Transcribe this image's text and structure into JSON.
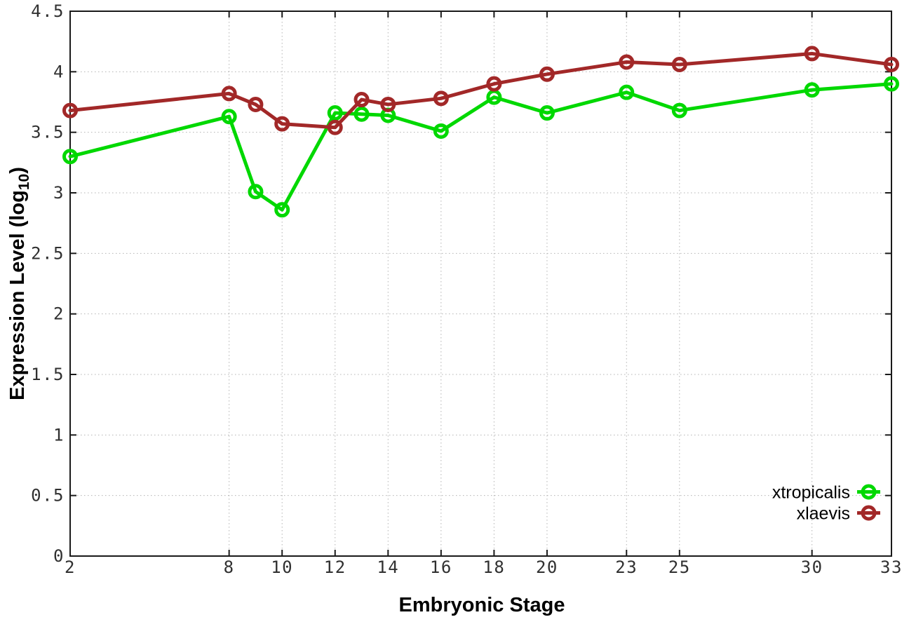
{
  "figure": {
    "background": "#ffffff",
    "border_color": "#1a1a1a",
    "grid_color": "#b3b3b3"
  },
  "chart_data": {
    "type": "line",
    "title": "",
    "xlabel": "Embryonic Stage",
    "ylabel": "Expression Level (log10)",
    "ylabel_parts": {
      "pre": "Expression Level (log",
      "sub": "10",
      "post": ")"
    },
    "xlim": [
      2,
      33
    ],
    "ylim": [
      0,
      4.5
    ],
    "xticks": [
      2,
      8,
      10,
      12,
      14,
      16,
      18,
      20,
      23,
      25,
      30,
      33
    ],
    "yticks": [
      0,
      0.5,
      1,
      1.5,
      2,
      2.5,
      3,
      3.5,
      4,
      4.5
    ],
    "grid": true,
    "legend_position": "bottom-right",
    "x": [
      2,
      8,
      9,
      10,
      12,
      13,
      14,
      16,
      18,
      20,
      23,
      25,
      30,
      33
    ],
    "series": [
      {
        "name": "xtropicalis",
        "color": "#00d800",
        "marker": "open-circle",
        "values": [
          3.3,
          3.63,
          3.01,
          2.86,
          3.66,
          3.65,
          3.64,
          3.51,
          3.79,
          3.66,
          3.83,
          3.68,
          3.85,
          3.9
        ]
      },
      {
        "name": "xlaevis",
        "color": "#a22828",
        "marker": "open-circle",
        "values": [
          3.68,
          3.82,
          3.73,
          3.57,
          3.54,
          3.77,
          3.73,
          3.78,
          3.9,
          3.98,
          4.08,
          4.06,
          4.15,
          4.06
        ]
      }
    ]
  }
}
